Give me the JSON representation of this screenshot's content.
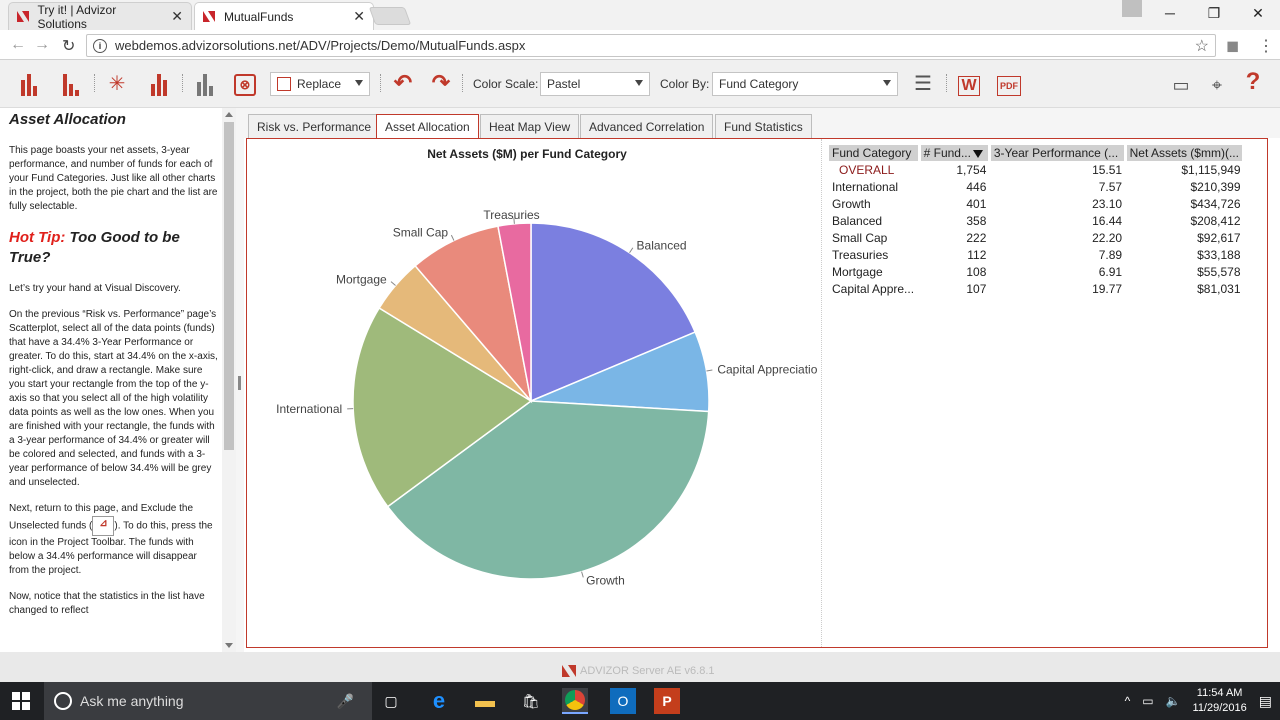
{
  "browser": {
    "tabs": [
      {
        "title": "Try it! | Advizor Solutions",
        "active": false
      },
      {
        "title": "MutualFunds",
        "active": true
      }
    ],
    "url": "webdemos.advizorsolutions.net/ADV/Projects/Demo/MutualFunds.aspx"
  },
  "toolbar": {
    "replace_label": "Replace",
    "color_scale_label": "Color Scale:",
    "color_scale_value": "Pastel",
    "color_by_label": "Color By:",
    "color_by_value": "Fund Category"
  },
  "left_panel": {
    "title": "Asset Allocation",
    "intro": "This page boasts your net assets, 3-year performance, and number of funds for each of your Fund Categories. Just like all other charts in the project, both the pie chart and the list are fully selectable.",
    "hot_tip_label": "Hot Tip:",
    "hot_tip_title": "Too Good to be True?",
    "p1": "Let’s try your hand at Visual Discovery.",
    "p2": "On the previous “Risk vs. Performance” page’s Scatterplot, select all of the data points (funds) that have a 34.4% 3-Year Performance or greater. To do this, start at 34.4% on the x-axis, right-click, and draw a rectangle. Make sure you start your rectangle from the top of the y-axis so that you select all of the high volatility data points as well as the low ones. When you are finished with your rectangle, the funds with a 3-year performance of 34.4% or greater will be colored and selected, and funds with a 3-year performance of below 34.4% will be grey and unselected.",
    "p3a": "Next, return to this page, and Exclude the Unselected funds (",
    "p3b": "). To do this, press the icon in the Project Toolbar. The funds with below a 34.4% performance will disappear from the project.",
    "p4": "Now, notice that the statistics in the list have changed to reflect"
  },
  "view_tabs": [
    "Risk vs. Performance",
    "Asset Allocation",
    "Heat Map View",
    "Advanced Correlation",
    "Fund Statistics"
  ],
  "active_tab": "Asset Allocation",
  "chart_data": {
    "type": "pie",
    "title": "Net Assets ($M) per Fund Category",
    "categories": [
      "Balanced",
      "Capital Appreciation",
      "Growth",
      "International",
      "Mortgage",
      "Small Cap",
      "Treasuries"
    ],
    "values": [
      208412,
      81031,
      434726,
      210399,
      55578,
      92617,
      33188
    ],
    "colors": [
      "#7b7fe0",
      "#7ab6e6",
      "#7fb7a4",
      "#9fba7b",
      "#e5b97a",
      "#e98a7c",
      "#e86aa0"
    ],
    "label_texts": [
      "Balanced",
      "Capital Appreciatio",
      "Growth",
      "International",
      "Mortgage",
      "Small Cap",
      "Treasuries"
    ]
  },
  "table": {
    "headers": [
      "Fund Category",
      "# Fund...",
      "3-Year Performance (...",
      "Net Assets ($mm)(..."
    ],
    "rows": [
      [
        "OVERALL",
        "1,754",
        "15.51",
        "$1,115,949"
      ],
      [
        "International",
        "446",
        "7.57",
        "$210,399"
      ],
      [
        "Growth",
        "401",
        "23.10",
        "$434,726"
      ],
      [
        "Balanced",
        "358",
        "16.44",
        "$208,412"
      ],
      [
        "Small Cap",
        "222",
        "22.20",
        "$92,617"
      ],
      [
        "Treasuries",
        "112",
        "7.89",
        "$33,188"
      ],
      [
        "Mortgage",
        "108",
        "6.91",
        "$55,578"
      ],
      [
        "Capital Appre...",
        "107",
        "19.77",
        "$81,031"
      ]
    ]
  },
  "footer": {
    "brand": "ADVIZOR Server AE v6.8.1"
  },
  "taskbar": {
    "search_placeholder": "Ask me anything",
    "time": "11:54 AM",
    "date": "11/29/2016"
  }
}
